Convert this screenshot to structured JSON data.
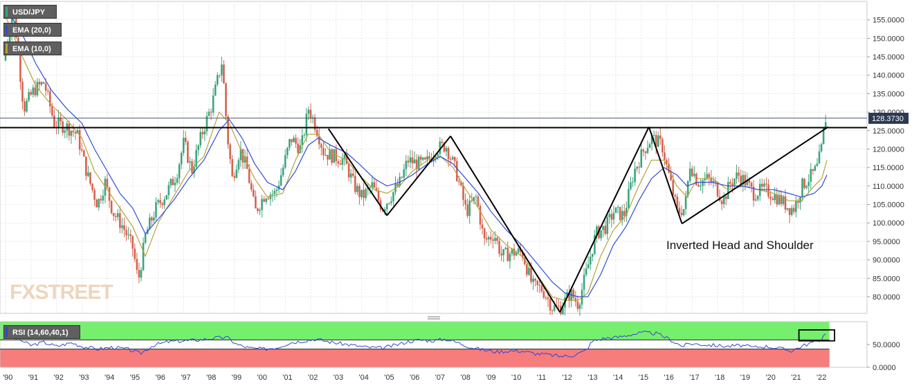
{
  "chart_data": {
    "type": "candlestick",
    "symbol": "USD/JPY",
    "indicators": [
      "EMA (20,0)",
      "EMA (10,0)"
    ],
    "rsi_label": "RSI (14,60,40,1)",
    "last_price": "128.3730",
    "x_ticks": [
      "'90",
      "'91",
      "'92",
      "'93",
      "'94",
      "'95",
      "'96",
      "'97",
      "'98",
      "'99",
      "'00",
      "'01",
      "'02",
      "'03",
      "'04",
      "'05",
      "'06",
      "'07",
      "'08",
      "'09",
      "'10",
      "'11",
      "'12",
      "'13",
      "'14",
      "'15",
      "'16",
      "'17",
      "'18",
      "'19",
      "'20",
      "'21",
      "'22"
    ],
    "y_ticks": [
      "155.0000",
      "150.0000",
      "145.0000",
      "140.0000",
      "135.0000",
      "130.0000",
      "125.0000",
      "120.0000",
      "115.0000",
      "110.0000",
      "105.0000",
      "100.0000",
      "95.0000",
      "90.0000",
      "85.0000",
      "80.0000"
    ],
    "rsi_ticks": [
      "50.0000",
      "0.0000"
    ],
    "ylim": [
      75.5,
      160
    ],
    "annotation": "Inverted Head and Shoulder",
    "watermark": "FXSTREET",
    "price_path": [
      [
        1990.0,
        144
      ],
      [
        1990.4,
        158
      ],
      [
        1990.8,
        131
      ],
      [
        1991.2,
        136
      ],
      [
        1991.6,
        138
      ],
      [
        1992.0,
        127
      ],
      [
        1992.5,
        126
      ],
      [
        1992.9,
        124
      ],
      [
        1993.3,
        113
      ],
      [
        1993.7,
        105
      ],
      [
        1994.0,
        111
      ],
      [
        1994.3,
        103
      ],
      [
        1994.7,
        99
      ],
      [
        1995.1,
        93
      ],
      [
        1995.3,
        84
      ],
      [
        1995.6,
        97
      ],
      [
        1996.0,
        104
      ],
      [
        1996.4,
        108
      ],
      [
        1996.8,
        113
      ],
      [
        1997.1,
        122
      ],
      [
        1997.4,
        114
      ],
      [
        1997.8,
        124
      ],
      [
        1998.2,
        132
      ],
      [
        1998.6,
        144
      ],
      [
        1998.8,
        124
      ],
      [
        1999.0,
        112
      ],
      [
        1999.3,
        120
      ],
      [
        1999.6,
        114
      ],
      [
        1999.9,
        103
      ],
      [
        2000.3,
        108
      ],
      [
        2000.7,
        108
      ],
      [
        2001.0,
        115
      ],
      [
        2001.3,
        123
      ],
      [
        2001.7,
        120
      ],
      [
        2002.0,
        131
      ],
      [
        2002.3,
        126
      ],
      [
        2002.6,
        119
      ],
      [
        2003.0,
        118
      ],
      [
        2003.4,
        117
      ],
      [
        2003.8,
        110
      ],
      [
        2004.1,
        107
      ],
      [
        2004.5,
        110
      ],
      [
        2004.9,
        104
      ],
      [
        2005.2,
        107
      ],
      [
        2005.6,
        111
      ],
      [
        2005.9,
        117
      ],
      [
        2006.3,
        116
      ],
      [
        2006.6,
        116
      ],
      [
        2007.0,
        120
      ],
      [
        2007.4,
        121
      ],
      [
        2007.8,
        114
      ],
      [
        2008.2,
        103
      ],
      [
        2008.6,
        107
      ],
      [
        2008.9,
        95
      ],
      [
        2009.3,
        97
      ],
      [
        2009.6,
        91
      ],
      [
        2010.0,
        92
      ],
      [
        2010.4,
        92
      ],
      [
        2010.8,
        83
      ],
      [
        2011.2,
        82
      ],
      [
        2011.6,
        77
      ],
      [
        2011.9,
        77
      ],
      [
        2012.3,
        81
      ],
      [
        2012.6,
        78
      ],
      [
        2012.9,
        86
      ],
      [
        2013.3,
        97
      ],
      [
        2013.7,
        99
      ],
      [
        2014.0,
        103
      ],
      [
        2014.4,
        102
      ],
      [
        2014.8,
        114
      ],
      [
        2015.2,
        120
      ],
      [
        2015.5,
        123
      ],
      [
        2015.9,
        121
      ],
      [
        2016.2,
        112
      ],
      [
        2016.5,
        103
      ],
      [
        2016.8,
        104
      ],
      [
        2017.0,
        116
      ],
      [
        2017.3,
        111
      ],
      [
        2017.7,
        112
      ],
      [
        2018.0,
        110
      ],
      [
        2018.3,
        106
      ],
      [
        2018.6,
        111
      ],
      [
        2018.9,
        113
      ],
      [
        2019.2,
        111
      ],
      [
        2019.5,
        108
      ],
      [
        2019.9,
        109
      ],
      [
        2020.2,
        108
      ],
      [
        2020.6,
        106
      ],
      [
        2020.9,
        104
      ],
      [
        2021.1,
        104
      ],
      [
        2021.4,
        110
      ],
      [
        2021.8,
        113
      ],
      [
        2022.0,
        115
      ],
      [
        2022.2,
        121
      ],
      [
        2022.3,
        128.4
      ]
    ],
    "ema20": [
      [
        1990.0,
        158
      ],
      [
        1990.6,
        152
      ],
      [
        1991.2,
        143
      ],
      [
        1991.8,
        136
      ],
      [
        1992.4,
        131
      ],
      [
        1993.0,
        127
      ],
      [
        1993.5,
        120
      ],
      [
        1994.0,
        114
      ],
      [
        1994.5,
        108
      ],
      [
        1995.0,
        104
      ],
      [
        1995.5,
        97
      ],
      [
        1996.0,
        101
      ],
      [
        1996.6,
        106
      ],
      [
        1997.2,
        112
      ],
      [
        1997.8,
        117
      ],
      [
        1998.4,
        125
      ],
      [
        1998.8,
        128
      ],
      [
        1999.3,
        123
      ],
      [
        1999.8,
        116
      ],
      [
        2000.3,
        111
      ],
      [
        2000.9,
        109
      ],
      [
        2001.4,
        114
      ],
      [
        2001.9,
        121
      ],
      [
        2002.3,
        123
      ],
      [
        2002.8,
        121
      ],
      [
        2003.4,
        119
      ],
      [
        2003.9,
        116
      ],
      [
        2004.5,
        112
      ],
      [
        2005.0,
        110
      ],
      [
        2005.5,
        111
      ],
      [
        2006.0,
        113
      ],
      [
        2006.6,
        116
      ],
      [
        2007.1,
        118
      ],
      [
        2007.6,
        116
      ],
      [
        2008.1,
        112
      ],
      [
        2008.6,
        108
      ],
      [
        2009.1,
        103
      ],
      [
        2009.7,
        98
      ],
      [
        2010.3,
        94
      ],
      [
        2010.9,
        89
      ],
      [
        2011.5,
        84
      ],
      [
        2012.0,
        81
      ],
      [
        2012.5,
        80
      ],
      [
        2012.9,
        80
      ],
      [
        2013.4,
        86
      ],
      [
        2013.9,
        94
      ],
      [
        2014.4,
        99
      ],
      [
        2014.9,
        106
      ],
      [
        2015.4,
        112
      ],
      [
        2015.9,
        115
      ],
      [
        2016.4,
        113
      ],
      [
        2016.8,
        110
      ],
      [
        2017.2,
        111
      ],
      [
        2017.8,
        111
      ],
      [
        2018.4,
        110
      ],
      [
        2019.0,
        110
      ],
      [
        2019.6,
        109
      ],
      [
        2020.2,
        109
      ],
      [
        2020.8,
        108
      ],
      [
        2021.3,
        107
      ],
      [
        2021.8,
        108
      ],
      [
        2022.1,
        110
      ],
      [
        2022.3,
        113
      ]
    ],
    "ema10": [
      [
        1990.0,
        156
      ],
      [
        1990.6,
        146
      ],
      [
        1991.2,
        137
      ],
      [
        1991.8,
        132
      ],
      [
        1992.4,
        128
      ],
      [
        1993.0,
        123
      ],
      [
        1993.5,
        114
      ],
      [
        1994.0,
        109
      ],
      [
        1994.5,
        104
      ],
      [
        1995.0,
        99
      ],
      [
        1995.5,
        91
      ],
      [
        1996.0,
        100
      ],
      [
        1996.6,
        107
      ],
      [
        1997.2,
        114
      ],
      [
        1997.8,
        118
      ],
      [
        1998.4,
        130
      ],
      [
        1998.8,
        127
      ],
      [
        1999.3,
        119
      ],
      [
        1999.8,
        112
      ],
      [
        2000.3,
        107
      ],
      [
        2000.9,
        108
      ],
      [
        2001.4,
        117
      ],
      [
        2001.9,
        124
      ],
      [
        2002.3,
        124
      ],
      [
        2002.8,
        119
      ],
      [
        2003.4,
        117
      ],
      [
        2003.9,
        113
      ],
      [
        2004.5,
        109
      ],
      [
        2005.0,
        108
      ],
      [
        2005.5,
        110
      ],
      [
        2006.0,
        114
      ],
      [
        2006.6,
        117
      ],
      [
        2007.1,
        118
      ],
      [
        2007.6,
        115
      ],
      [
        2008.1,
        109
      ],
      [
        2008.6,
        104
      ],
      [
        2009.1,
        98
      ],
      [
        2009.7,
        94
      ],
      [
        2010.3,
        91
      ],
      [
        2010.9,
        86
      ],
      [
        2011.5,
        80
      ],
      [
        2012.0,
        79
      ],
      [
        2012.5,
        79
      ],
      [
        2012.9,
        81
      ],
      [
        2013.4,
        91
      ],
      [
        2013.9,
        98
      ],
      [
        2014.4,
        102
      ],
      [
        2014.9,
        110
      ],
      [
        2015.4,
        117
      ],
      [
        2015.9,
        117
      ],
      [
        2016.4,
        110
      ],
      [
        2016.8,
        107
      ],
      [
        2017.2,
        112
      ],
      [
        2017.8,
        112
      ],
      [
        2018.4,
        109
      ],
      [
        2019.0,
        110
      ],
      [
        2019.6,
        109
      ],
      [
        2020.2,
        108
      ],
      [
        2020.8,
        106
      ],
      [
        2021.3,
        106
      ],
      [
        2021.8,
        110
      ],
      [
        2022.1,
        112
      ],
      [
        2022.3,
        117
      ]
    ],
    "neckline": 125.8,
    "pattern_lines": [
      [
        [
          2002.7,
          125.5
        ],
        [
          2005.0,
          102.0
        ]
      ],
      [
        [
          2005.0,
          102.0
        ],
        [
          2007.5,
          123.5
        ]
      ],
      [
        [
          2007.5,
          123.5
        ],
        [
          2011.8,
          75.8
        ]
      ],
      [
        [
          2011.8,
          75.8
        ],
        [
          2015.3,
          126.0
        ]
      ],
      [
        [
          2015.3,
          126.0
        ],
        [
          2016.6,
          99.8
        ]
      ],
      [
        [
          2016.6,
          99.8
        ],
        [
          2022.35,
          126.0
        ]
      ]
    ],
    "rsi_series": [
      [
        1990.0,
        70
      ],
      [
        1990.5,
        62
      ],
      [
        1991.0,
        48
      ],
      [
        1991.5,
        55
      ],
      [
        1992.0,
        46
      ],
      [
        1992.6,
        54
      ],
      [
        1993.0,
        46
      ],
      [
        1993.6,
        40
      ],
      [
        1994.2,
        44
      ],
      [
        1994.8,
        40
      ],
      [
        1995.3,
        30
      ],
      [
        1995.8,
        48
      ],
      [
        1996.4,
        56
      ],
      [
        1997.0,
        58
      ],
      [
        1997.6,
        60
      ],
      [
        1998.2,
        64
      ],
      [
        1998.7,
        66
      ],
      [
        1999.1,
        50
      ],
      [
        1999.6,
        42
      ],
      [
        2000.2,
        40
      ],
      [
        2000.7,
        44
      ],
      [
        2001.2,
        54
      ],
      [
        2001.7,
        58
      ],
      [
        2002.2,
        62
      ],
      [
        2002.7,
        56
      ],
      [
        2003.2,
        52
      ],
      [
        2003.7,
        48
      ],
      [
        2004.2,
        44
      ],
      [
        2004.8,
        42
      ],
      [
        2005.3,
        48
      ],
      [
        2005.8,
        56
      ],
      [
        2006.3,
        60
      ],
      [
        2006.8,
        58
      ],
      [
        2007.3,
        62
      ],
      [
        2007.8,
        54
      ],
      [
        2008.3,
        44
      ],
      [
        2008.8,
        38
      ],
      [
        2009.3,
        34
      ],
      [
        2009.8,
        36
      ],
      [
        2010.3,
        36
      ],
      [
        2010.8,
        30
      ],
      [
        2011.3,
        28
      ],
      [
        2011.8,
        24
      ],
      [
        2012.3,
        26
      ],
      [
        2012.8,
        36
      ],
      [
        2013.1,
        58
      ],
      [
        2013.6,
        64
      ],
      [
        2014.1,
        66
      ],
      [
        2014.6,
        72
      ],
      [
        2015.1,
        76
      ],
      [
        2015.6,
        74
      ],
      [
        2016.1,
        62
      ],
      [
        2016.6,
        46
      ],
      [
        2016.9,
        52
      ],
      [
        2017.4,
        50
      ],
      [
        2017.9,
        48
      ],
      [
        2018.4,
        46
      ],
      [
        2018.9,
        48
      ],
      [
        2019.4,
        44
      ],
      [
        2019.9,
        46
      ],
      [
        2020.4,
        42
      ],
      [
        2020.9,
        36
      ],
      [
        2021.3,
        46
      ],
      [
        2021.8,
        56
      ],
      [
        2022.1,
        62
      ],
      [
        2022.3,
        82
      ]
    ],
    "rsi_ylim": [
      0,
      100
    ],
    "rsi_levels": [
      60,
      40
    ],
    "colors": {
      "up": "#3aa57a",
      "down": "#d5614e",
      "ema20": "#2f4bd8",
      "ema10": "#b5a33a",
      "rsi_upper": "#77ef6e",
      "rsi_lower": "#f77c7c",
      "rsi_line": "#3344cc",
      "price_tag": "#2b3a52"
    }
  }
}
